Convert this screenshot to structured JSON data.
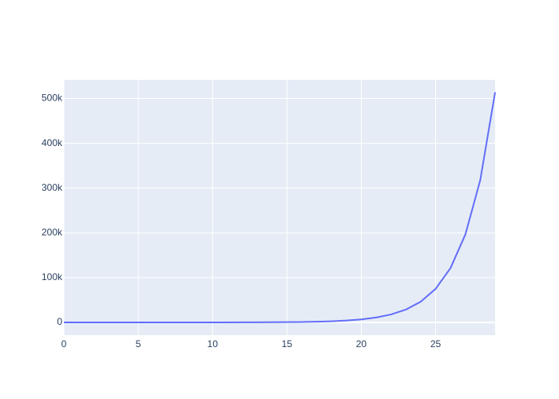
{
  "chart_data": {
    "type": "line",
    "x": [
      0,
      1,
      2,
      3,
      4,
      5,
      6,
      7,
      8,
      9,
      10,
      11,
      12,
      13,
      14,
      15,
      16,
      17,
      18,
      19,
      20,
      21,
      22,
      23,
      24,
      25,
      26,
      27,
      28,
      29
    ],
    "series": [
      {
        "color": "#636efa",
        "values": [
          0,
          1,
          1,
          2,
          3,
          5,
          8,
          13,
          21,
          34,
          55,
          89,
          144,
          233,
          377,
          610,
          987,
          1597,
          2584,
          4181,
          6765,
          10946,
          17711,
          28657,
          46368,
          75025,
          121393,
          196418,
          317811,
          514229
        ]
      }
    ],
    "xlim": [
      0,
      29
    ],
    "xticks": [
      0,
      5,
      10,
      15,
      20,
      25
    ],
    "ylim": [
      -28500,
      542000
    ],
    "yticks": [
      {
        "value": 0,
        "label": "0"
      },
      {
        "value": 100000,
        "label": "100k"
      },
      {
        "value": 200000,
        "label": "200k"
      },
      {
        "value": 300000,
        "label": "300k"
      },
      {
        "value": 400000,
        "label": "400k"
      },
      {
        "value": 500000,
        "label": "500k"
      }
    ],
    "grid": true
  }
}
